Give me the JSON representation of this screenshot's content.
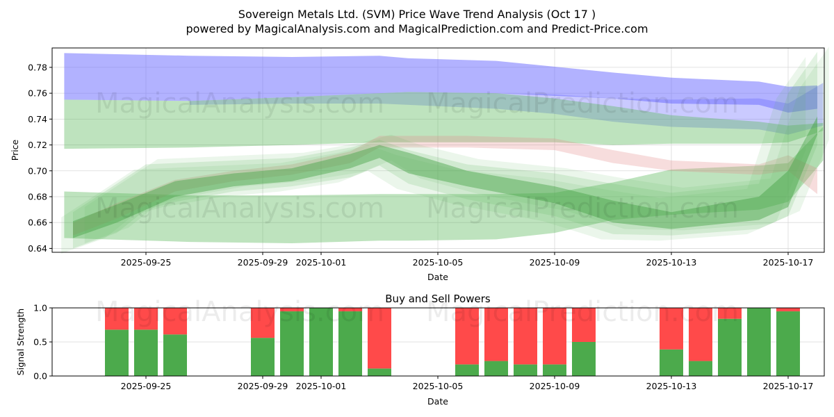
{
  "figure": {
    "title": "Sovereign Metals Ltd. (SVM) Price Wave Trend Analysis (Oct 17 )",
    "subtitle": "powered by MagicalAnalysis.com and MagicalPrediction.com and Predict-Price.com",
    "watermarks": [
      "MagicalAnalysis.com",
      "MagicalPrediction.com"
    ]
  },
  "chart_data": [
    {
      "type": "area",
      "title": "",
      "xlabel": "Date",
      "ylabel": "Price",
      "ylim": [
        0.637,
        0.795
      ],
      "xlim_days_from_2025_09_25": [
        -3.2,
        23.2
      ],
      "yticks": [
        0.64,
        0.66,
        0.68,
        0.7,
        0.72,
        0.74,
        0.76,
        0.78
      ],
      "ytick_labels": [
        "0.64",
        "0.66",
        "0.68",
        "0.70",
        "0.72",
        "0.74",
        "0.76",
        "0.78"
      ],
      "xticks": [
        "2025-09-25",
        "2025-09-29",
        "2025-10-01",
        "2025-10-05",
        "2025-10-09",
        "2025-10-13",
        "2025-10-17"
      ],
      "grid": true,
      "colors": {
        "blue_band": "#6666ff",
        "green_band": "#4caf50",
        "red_band": "#e08080",
        "dark_green": "#2e8b2e"
      },
      "bands": [
        {
          "name": "upper blue resistance band",
          "color": "blue",
          "opacity": 0.5,
          "x": [
            -2.8,
            1.5,
            5,
            8,
            9,
            12,
            16,
            18,
            21,
            22,
            23
          ],
          "upper": [
            0.791,
            0.789,
            0.788,
            0.789,
            0.787,
            0.785,
            0.776,
            0.772,
            0.769,
            0.765,
            0.766
          ],
          "lower": [
            0.755,
            0.754,
            0.757,
            0.76,
            0.761,
            0.76,
            0.756,
            0.752,
            0.751,
            0.745,
            0.748
          ]
        },
        {
          "name": "upper blue band overlap (dark)",
          "color": "blue",
          "opacity": 0.35,
          "x": [
            1.5,
            5,
            8,
            9,
            12,
            14,
            16,
            18,
            21,
            22,
            23.2
          ],
          "upper": [
            0.754,
            0.757,
            0.76,
            0.761,
            0.76,
            0.759,
            0.756,
            0.755,
            0.756,
            0.752,
            0.768
          ],
          "lower": [
            0.751,
            0.752,
            0.752,
            0.751,
            0.748,
            0.744,
            0.738,
            0.734,
            0.732,
            0.728,
            0.735
          ]
        },
        {
          "name": "upper green support band",
          "color": "green",
          "opacity": 0.4,
          "x": [
            -2.8,
            1.5,
            5,
            8,
            9,
            12,
            14,
            16,
            18,
            21,
            22,
            23.2
          ],
          "upper": [
            0.755,
            0.754,
            0.757,
            0.76,
            0.761,
            0.76,
            0.756,
            0.75,
            0.743,
            0.738,
            0.735,
            0.737
          ],
          "lower": [
            0.717,
            0.718,
            0.72,
            0.722,
            0.722,
            0.722,
            0.722,
            0.72,
            0.721,
            0.721,
            0.722,
            0.731
          ]
        },
        {
          "name": "lower green support band",
          "color": "green",
          "opacity": 0.4,
          "x": [
            -2.8,
            1.5,
            5,
            8,
            9,
            12,
            14,
            16,
            18,
            21,
            22,
            23.2
          ],
          "upper": [
            0.684,
            0.681,
            0.681,
            0.682,
            0.682,
            0.682,
            0.683,
            0.691,
            0.701,
            0.704,
            0.706,
            0.734
          ],
          "lower": [
            0.648,
            0.645,
            0.644,
            0.646,
            0.646,
            0.647,
            0.652,
            0.662,
            0.666,
            0.67,
            0.676,
            0.708
          ]
        },
        {
          "name": "red price wave",
          "color": "red",
          "opacity": 0.3,
          "x": [
            -2.5,
            -1,
            1,
            3,
            5,
            7,
            8,
            11,
            14,
            16,
            18,
            21,
            22,
            23
          ],
          "upper": [
            0.66,
            0.675,
            0.693,
            0.7,
            0.705,
            0.715,
            0.727,
            0.727,
            0.725,
            0.716,
            0.708,
            0.705,
            0.712,
            0.702
          ],
          "lower": [
            0.65,
            0.663,
            0.684,
            0.692,
            0.697,
            0.706,
            0.718,
            0.718,
            0.716,
            0.706,
            0.7,
            0.697,
            0.7,
            0.682
          ]
        },
        {
          "name": "green price wave core",
          "color": "darkgreen",
          "opacity": 0.45,
          "x": [
            -2.5,
            -1,
            1,
            3,
            5,
            7,
            8,
            9,
            11,
            14,
            16,
            18,
            21,
            22,
            23
          ],
          "upper": [
            0.661,
            0.674,
            0.692,
            0.698,
            0.702,
            0.713,
            0.72,
            0.714,
            0.7,
            0.688,
            0.677,
            0.668,
            0.68,
            0.7,
            0.742
          ],
          "lower": [
            0.648,
            0.66,
            0.68,
            0.688,
            0.692,
            0.702,
            0.71,
            0.698,
            0.688,
            0.675,
            0.66,
            0.655,
            0.662,
            0.672,
            0.728
          ]
        },
        {
          "name": "green price wave spread",
          "color": "green",
          "opacity": 0.18,
          "x": [
            -2.5,
            -1,
            0,
            1,
            3,
            5,
            7,
            8,
            9,
            11,
            14,
            16,
            18,
            21,
            22,
            23
          ],
          "upper": [
            0.668,
            0.69,
            0.705,
            0.706,
            0.708,
            0.71,
            0.718,
            0.724,
            0.716,
            0.705,
            0.698,
            0.69,
            0.683,
            0.69,
            0.76,
            0.792
          ],
          "lower": [
            0.64,
            0.652,
            0.67,
            0.676,
            0.684,
            0.688,
            0.695,
            0.704,
            0.69,
            0.678,
            0.665,
            0.651,
            0.65,
            0.655,
            0.665,
            0.72
          ]
        }
      ]
    },
    {
      "type": "bar",
      "title": "Buy and Sell Powers",
      "xlabel": "Date",
      "ylabel": "Signal Strength",
      "ylim": [
        0,
        1
      ],
      "yticks": [
        0.0,
        0.5,
        1.0
      ],
      "ytick_labels": [
        "0.0",
        "0.5",
        "1.0"
      ],
      "xticks": [
        "2025-09-25",
        "2025-09-29",
        "2025-10-01",
        "2025-10-05",
        "2025-10-09",
        "2025-10-13",
        "2025-10-17"
      ],
      "grid": true,
      "colors": {
        "buy": "#4caa4c",
        "sell": "#ff4a4a"
      },
      "categories": [
        "2025-09-24",
        "2025-09-25",
        "2025-09-26",
        "2025-09-29",
        "2025-09-30",
        "2025-10-01",
        "2025-10-02",
        "2025-10-03",
        "2025-10-06",
        "2025-10-07",
        "2025-10-08",
        "2025-10-09",
        "2025-10-10",
        "2025-10-13",
        "2025-10-14",
        "2025-10-15",
        "2025-10-16",
        "2025-10-17"
      ],
      "series": [
        {
          "name": "Buy",
          "values": [
            0.68,
            0.68,
            0.61,
            0.56,
            0.95,
            1.0,
            0.95,
            0.11,
            0.17,
            0.22,
            0.17,
            0.17,
            0.5,
            0.39,
            0.22,
            0.84,
            1.0,
            0.95
          ]
        },
        {
          "name": "Sell",
          "values": [
            0.32,
            0.32,
            0.39,
            0.44,
            0.05,
            0.0,
            0.05,
            0.89,
            0.83,
            0.78,
            0.83,
            0.83,
            0.5,
            0.61,
            0.78,
            0.16,
            0.0,
            0.05
          ]
        }
      ]
    }
  ]
}
